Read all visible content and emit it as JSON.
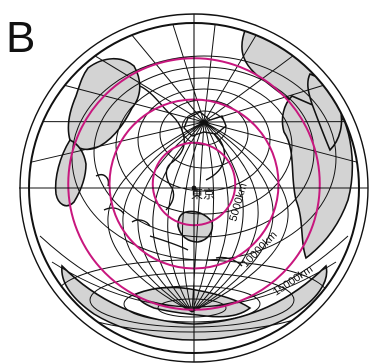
{
  "panel_label": "B",
  "center_city": "東京",
  "distance_rings": [
    {
      "distance_km": 5000,
      "label": "5000km"
    },
    {
      "distance_km": 10000,
      "label": "10000km"
    },
    {
      "distance_km": 15000,
      "label": "15000km"
    }
  ],
  "ring_color": "#c8177e",
  "land_color": "#d3d3d3",
  "line_color": "#111111",
  "projection": "azimuthal-equidistant"
}
